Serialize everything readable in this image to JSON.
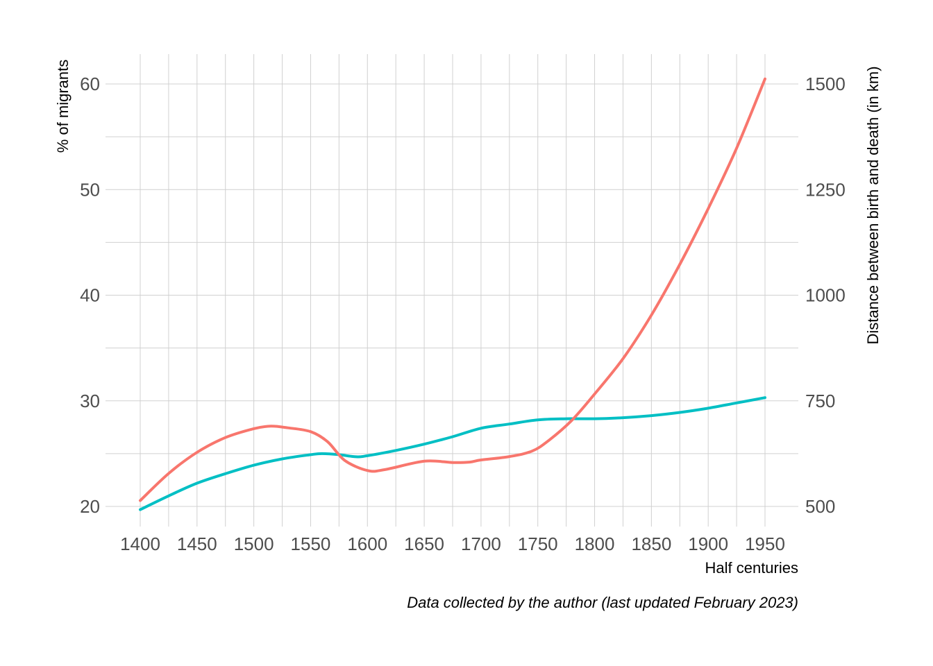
{
  "chart_data": {
    "type": "line",
    "title": "",
    "xlabel": "Half centuries",
    "ylabel": "% of migrants",
    "y2label": "Distance between birth and death (in km)",
    "caption": "Data collected by the author (last updated February 2023)",
    "xlim": [
      1375,
      1975
    ],
    "ylim": [
      17.5,
      63
    ],
    "y2lim": [
      437.5,
      1575
    ],
    "x_ticks": [
      1400,
      1450,
      1500,
      1550,
      1600,
      1650,
      1700,
      1750,
      1800,
      1850,
      1900,
      1950
    ],
    "y_ticks": [
      20,
      30,
      40,
      50,
      60
    ],
    "y2_ticks": [
      500,
      750,
      1000,
      1250,
      1500
    ],
    "grid": true,
    "series": [
      {
        "axis": "y",
        "color": "#00BFC4",
        "x": [
          1400,
          1425,
          1450,
          1475,
          1500,
          1525,
          1550,
          1560,
          1575,
          1590,
          1600,
          1625,
          1650,
          1675,
          1700,
          1725,
          1750,
          1775,
          1800,
          1825,
          1850,
          1875,
          1900,
          1925,
          1950
        ],
        "values": [
          19.7,
          21.0,
          22.2,
          23.1,
          23.9,
          24.5,
          24.9,
          25.0,
          24.9,
          24.7,
          24.8,
          25.3,
          25.9,
          26.6,
          27.4,
          27.8,
          28.2,
          28.3,
          28.3,
          28.4,
          28.6,
          28.9,
          29.3,
          29.8,
          30.3
        ]
      },
      {
        "axis": "y2",
        "color": "#F8766D",
        "x": [
          1400,
          1425,
          1450,
          1475,
          1500,
          1515,
          1530,
          1550,
          1565,
          1580,
          1600,
          1615,
          1650,
          1675,
          1690,
          1700,
          1725,
          1745,
          1760,
          1780,
          1800,
          1825,
          1850,
          1875,
          1900,
          1925,
          1950
        ],
        "values": [
          514,
          578,
          628,
          663,
          684,
          690,
          686,
          677,
          653,
          609,
          585,
          587,
          607,
          604,
          605,
          610,
          618,
          631,
          657,
          704,
          766,
          850,
          953,
          1073,
          1205,
          1348,
          1512
        ]
      }
    ]
  }
}
